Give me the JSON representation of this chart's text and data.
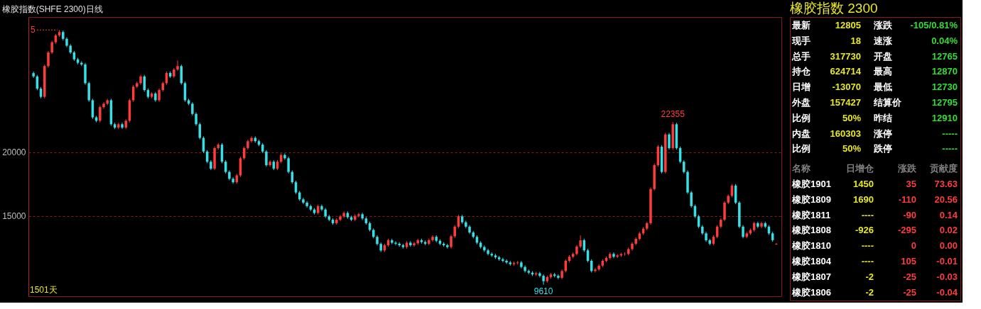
{
  "chart_data": [
    {
      "type": "candlestick",
      "title": "橡胶指数(SHFE 2300)日线",
      "ylim": [
        8700,
        30600
      ],
      "yticks": [
        15000,
        20000
      ],
      "grid": "y",
      "annotations": [
        "5",
        {
          "text": "22355",
          "y": 22355
        },
        {
          "text": "9610",
          "y": 9610
        },
        "1501天"
      ],
      "categories": [
        null,
        null,
        null,
        null,
        null,
        null,
        null,
        null,
        null,
        null,
        null,
        null,
        null,
        null,
        null,
        null,
        null,
        null,
        null,
        null,
        null,
        null,
        null,
        null,
        null,
        null,
        null,
        null,
        null,
        null,
        null,
        null,
        null,
        null,
        null,
        null,
        null,
        null,
        null,
        null,
        null,
        null,
        null,
        null,
        null,
        null,
        null,
        null,
        null,
        null,
        null,
        null,
        null,
        null,
        null,
        null,
        null,
        null,
        null,
        null,
        null,
        null,
        null,
        null,
        null,
        null,
        null,
        null,
        null,
        null,
        null,
        null,
        null,
        null,
        null,
        null,
        null,
        null,
        null,
        null,
        null,
        null,
        null,
        null,
        null,
        null,
        null,
        null,
        null,
        null,
        null,
        null,
        null,
        null,
        null,
        null,
        null,
        null,
        null,
        null,
        null,
        null,
        null,
        null,
        null,
        null,
        null,
        null,
        null,
        null,
        null,
        null,
        null,
        null,
        null,
        null,
        null,
        null,
        null,
        null,
        null,
        null,
        null,
        null,
        null,
        null,
        null,
        null,
        null,
        null,
        null,
        null,
        null,
        null,
        null,
        null,
        null,
        null,
        null,
        null,
        null,
        null,
        null,
        null,
        null,
        null,
        null,
        null,
        null,
        null,
        null,
        null,
        null,
        null,
        null,
        null,
        null,
        null,
        null,
        null,
        null,
        null,
        null,
        null,
        null,
        null,
        null,
        null,
        null,
        null,
        null,
        null,
        null,
        null,
        null,
        null,
        null,
        null,
        null,
        null,
        null,
        null,
        null,
        null,
        null,
        null,
        null,
        null,
        null,
        null,
        null,
        null,
        null,
        null,
        null,
        null,
        null,
        null,
        null,
        null,
        null,
        null
      ],
      "ohlc": [
        [
          26200,
          26320,
          25820,
          25940
        ],
        [
          25940,
          26060,
          24860,
          24980
        ],
        [
          24980,
          25100,
          24220,
          24340
        ],
        [
          24340,
          26870,
          24220,
          26750
        ],
        [
          26750,
          27940,
          26630,
          27820
        ],
        [
          27820,
          28740,
          27700,
          28620
        ],
        [
          28620,
          29280,
          28500,
          29160
        ],
        [
          29160,
          29585,
          29040,
          29420
        ],
        [
          29420,
          29540,
          28770,
          28890
        ],
        [
          28890,
          29010,
          28230,
          28350
        ],
        [
          28350,
          28470,
          27700,
          27820
        ],
        [
          27820,
          27940,
          27160,
          27280
        ],
        [
          27280,
          27400,
          26890,
          27010
        ],
        [
          27010,
          27130,
          26760,
          26880
        ],
        [
          26880,
          27000,
          25290,
          25410
        ],
        [
          25410,
          25530,
          23950,
          24070
        ],
        [
          24070,
          24190,
          22610,
          22730
        ],
        [
          22730,
          22850,
          22340,
          22460
        ],
        [
          22460,
          23650,
          22340,
          23530
        ],
        [
          23530,
          23920,
          23410,
          23800
        ],
        [
          23800,
          24190,
          23680,
          24070
        ],
        [
          24070,
          24190,
          22070,
          22190
        ],
        [
          22190,
          22310,
          21810,
          21930
        ],
        [
          21930,
          22310,
          21810,
          22190
        ],
        [
          22190,
          22310,
          21810,
          21930
        ],
        [
          21930,
          22580,
          21810,
          22460
        ],
        [
          22460,
          24190,
          22340,
          24070
        ],
        [
          24070,
          25260,
          23950,
          25140
        ],
        [
          25140,
          25530,
          25020,
          25410
        ],
        [
          25410,
          26060,
          25290,
          25940
        ],
        [
          25940,
          26060,
          24750,
          24870
        ],
        [
          24870,
          24990,
          24220,
          24340
        ],
        [
          24340,
          24720,
          24220,
          24600
        ],
        [
          24600,
          24720,
          23950,
          24070
        ],
        [
          24070,
          24990,
          23950,
          24870
        ],
        [
          24870,
          25530,
          24750,
          25410
        ],
        [
          25410,
          26330,
          25290,
          26210
        ],
        [
          26210,
          26330,
          25820,
          25940
        ],
        [
          25940,
          26600,
          25820,
          26480
        ],
        [
          26480,
          27175,
          26360,
          26750
        ],
        [
          26750,
          26870,
          25290,
          25410
        ],
        [
          25410,
          25530,
          23950,
          24070
        ],
        [
          24070,
          24190,
          23680,
          23800
        ],
        [
          23800,
          23920,
          22880,
          23000
        ],
        [
          23000,
          23120,
          22070,
          22190
        ],
        [
          22190,
          22310,
          21000,
          21120
        ],
        [
          21120,
          21240,
          19930,
          20050
        ],
        [
          20050,
          20170,
          19130,
          19250
        ],
        [
          19250,
          19370,
          18590,
          18710
        ],
        [
          18710,
          20440,
          18590,
          20320
        ],
        [
          20320,
          20710,
          20200,
          20590
        ],
        [
          20590,
          20710,
          19130,
          19250
        ],
        [
          19250,
          19370,
          18330,
          18450
        ],
        [
          18450,
          18570,
          17790,
          17910
        ],
        [
          17910,
          18030,
          17520,
          17640
        ],
        [
          17640,
          18300,
          17520,
          18180
        ],
        [
          18180,
          19640,
          18060,
          19520
        ],
        [
          19520,
          20440,
          19400,
          20320
        ],
        [
          20320,
          20980,
          20200,
          20860
        ],
        [
          20860,
          21240,
          20740,
          21120
        ],
        [
          21120,
          21240,
          20740,
          20860
        ],
        [
          20860,
          20980,
          20470,
          20590
        ],
        [
          20590,
          20710,
          19930,
          20050
        ],
        [
          20050,
          20170,
          18860,
          18980
        ],
        [
          18980,
          19370,
          18860,
          19250
        ],
        [
          19250,
          19370,
          18590,
          18710
        ],
        [
          18710,
          19370,
          18590,
          19250
        ],
        [
          19250,
          19900,
          19130,
          19780
        ],
        [
          19780,
          19900,
          19400,
          19520
        ],
        [
          19520,
          19640,
          18330,
          18450
        ],
        [
          18450,
          18570,
          17520,
          17640
        ],
        [
          17640,
          17760,
          16720,
          16840
        ],
        [
          16840,
          16960,
          16180,
          16300
        ],
        [
          16300,
          16420,
          15920,
          16040
        ],
        [
          16040,
          16160,
          15650,
          15770
        ],
        [
          15770,
          15890,
          15380,
          15500
        ],
        [
          15500,
          15620,
          15110,
          15230
        ],
        [
          15230,
          15890,
          15110,
          15770
        ],
        [
          15770,
          15890,
          15380,
          15500
        ],
        [
          15500,
          15620,
          14840,
          14960
        ],
        [
          14960,
          15080,
          14580,
          14700
        ],
        [
          14700,
          14820,
          14310,
          14430
        ],
        [
          14430,
          14820,
          14310,
          14700
        ],
        [
          14700,
          15080,
          14580,
          14960
        ],
        [
          14960,
          15350,
          14840,
          15230
        ],
        [
          15230,
          15350,
          14780,
          14900
        ],
        [
          14900,
          15020,
          14580,
          14700
        ],
        [
          14700,
          15120,
          14580,
          15000
        ],
        [
          15000,
          15250,
          14880,
          15130
        ],
        [
          15130,
          15250,
          14680,
          14800
        ],
        [
          14800,
          14920,
          14310,
          14430
        ],
        [
          14430,
          14550,
          13780,
          13900
        ],
        [
          13900,
          14020,
          13240,
          13360
        ],
        [
          13360,
          13480,
          12680,
          12800
        ],
        [
          12800,
          12920,
          12170,
          12290
        ],
        [
          12290,
          12820,
          12170,
          12700
        ],
        [
          12700,
          13210,
          12580,
          13090
        ],
        [
          13090,
          13210,
          12780,
          12900
        ],
        [
          12900,
          13020,
          12700,
          12820
        ],
        [
          12820,
          12940,
          12580,
          12700
        ],
        [
          12700,
          12820,
          12440,
          12560
        ],
        [
          12560,
          13020,
          12440,
          12900
        ],
        [
          12900,
          13020,
          12580,
          12700
        ],
        [
          12700,
          12970,
          12580,
          12850
        ],
        [
          12850,
          13210,
          12730,
          13090
        ],
        [
          13090,
          13210,
          12830,
          12950
        ],
        [
          12950,
          13070,
          12700,
          12820
        ],
        [
          12820,
          13220,
          12700,
          13100
        ],
        [
          13100,
          13480,
          12980,
          13360
        ],
        [
          13360,
          13480,
          12930,
          13050
        ],
        [
          13050,
          13170,
          12700,
          12820
        ],
        [
          12820,
          12940,
          12580,
          12700
        ],
        [
          12700,
          12820,
          12440,
          12560
        ],
        [
          12560,
          13520,
          12440,
          13400
        ],
        [
          13400,
          14280,
          13280,
          14160
        ],
        [
          14160,
          15080,
          14040,
          14960
        ],
        [
          14960,
          15080,
          14380,
          14500
        ],
        [
          14500,
          14620,
          14040,
          14160
        ],
        [
          14160,
          14280,
          13580,
          13700
        ],
        [
          13700,
          13820,
          13240,
          13360
        ],
        [
          13360,
          13480,
          12780,
          12900
        ],
        [
          12900,
          13020,
          12440,
          12560
        ],
        [
          12560,
          12680,
          12180,
          12300
        ],
        [
          12300,
          12420,
          11900,
          12020
        ],
        [
          12020,
          12140,
          11780,
          11900
        ],
        [
          11900,
          12020,
          11630,
          11750
        ],
        [
          11750,
          11870,
          11480,
          11600
        ],
        [
          11600,
          11720,
          11360,
          11480
        ],
        [
          11480,
          11600,
          11230,
          11350
        ],
        [
          11350,
          11470,
          11100,
          11220
        ],
        [
          11220,
          11420,
          11100,
          11300
        ],
        [
          11300,
          11470,
          11180,
          11350
        ],
        [
          11350,
          11470,
          10880,
          11000
        ],
        [
          11000,
          11120,
          10560,
          10680
        ],
        [
          10680,
          10800,
          10430,
          10550
        ],
        [
          10550,
          10670,
          10290,
          10410
        ],
        [
          10410,
          10620,
          10290,
          10500
        ],
        [
          10500,
          10620,
          10180,
          10300
        ],
        [
          10300,
          10420,
          9610,
          9880
        ],
        [
          9880,
          10320,
          9760,
          10200
        ],
        [
          10200,
          10530,
          10080,
          10410
        ],
        [
          10410,
          10530,
          10180,
          10300
        ],
        [
          10300,
          10420,
          10030,
          10150
        ],
        [
          10150,
          10800,
          10030,
          10680
        ],
        [
          10680,
          11600,
          10560,
          11480
        ],
        [
          11480,
          11920,
          11360,
          11800
        ],
        [
          11800,
          12140,
          11680,
          12020
        ],
        [
          12020,
          12720,
          11900,
          12600
        ],
        [
          12600,
          13470,
          12480,
          13090
        ],
        [
          13090,
          13210,
          12180,
          12300
        ],
        [
          12300,
          12420,
          11360,
          11480
        ],
        [
          11480,
          11600,
          10560,
          10680
        ],
        [
          10680,
          10920,
          10560,
          10800
        ],
        [
          10800,
          11220,
          10680,
          11100
        ],
        [
          11100,
          11600,
          10980,
          11480
        ],
        [
          11480,
          11820,
          11360,
          11700
        ],
        [
          11700,
          12140,
          11580,
          12020
        ],
        [
          12020,
          12140,
          11680,
          11800
        ],
        [
          11800,
          12020,
          11680,
          11900
        ],
        [
          11900,
          12120,
          11780,
          12000
        ],
        [
          12000,
          12140,
          11880,
          12020
        ],
        [
          12020,
          12520,
          11900,
          12400
        ],
        [
          12400,
          12940,
          12280,
          12820
        ],
        [
          12820,
          13320,
          12700,
          13200
        ],
        [
          13200,
          13750,
          13080,
          13630
        ],
        [
          13630,
          14120,
          13510,
          14000
        ],
        [
          14000,
          14550,
          13880,
          14430
        ],
        [
          14430,
          17230,
          14310,
          17110
        ],
        [
          17110,
          19100,
          16990,
          18980
        ],
        [
          18980,
          20550,
          18860,
          20430
        ],
        [
          20430,
          20550,
          18330,
          18450
        ],
        [
          18450,
          21510,
          18330,
          21390
        ],
        [
          21390,
          21510,
          20200,
          20320
        ],
        [
          20320,
          22355,
          20200,
          22190
        ],
        [
          22190,
          22310,
          20200,
          20320
        ],
        [
          20320,
          20440,
          19130,
          19250
        ],
        [
          19250,
          19370,
          18330,
          18450
        ],
        [
          18450,
          18570,
          16720,
          16840
        ],
        [
          16840,
          16960,
          15650,
          15770
        ],
        [
          15770,
          15890,
          14840,
          14960
        ],
        [
          14960,
          15080,
          14040,
          14160
        ],
        [
          14160,
          14280,
          13510,
          13630
        ],
        [
          13630,
          13750,
          12970,
          13090
        ],
        [
          13090,
          13210,
          12700,
          12820
        ],
        [
          12820,
          13480,
          12700,
          13360
        ],
        [
          13360,
          14280,
          13240,
          14160
        ],
        [
          14160,
          14820,
          14040,
          14700
        ],
        [
          14700,
          16160,
          14580,
          16040
        ],
        [
          16040,
          16690,
          15920,
          16570
        ],
        [
          16570,
          17500,
          16450,
          17380
        ],
        [
          17380,
          17500,
          15920,
          16040
        ],
        [
          16040,
          16160,
          14040,
          14160
        ],
        [
          14160,
          14280,
          13240,
          13360
        ],
        [
          13360,
          13750,
          13240,
          13630
        ],
        [
          13630,
          14010,
          13510,
          13890
        ],
        [
          13890,
          14550,
          13770,
          14430
        ],
        [
          14430,
          14550,
          14040,
          14160
        ],
        [
          14160,
          14550,
          14040,
          14430
        ],
        [
          14430,
          14550,
          14040,
          14160
        ],
        [
          14160,
          14280,
          13510,
          13630
        ],
        [
          13630,
          13750,
          12980,
          13100
        ],
        [
          12765,
          12870,
          12730,
          12805
        ]
      ]
    },
    {
      "type": "other",
      "title": "橡胶指数 2300",
      "annotations": [
        "最新",
        "12805",
        "涨跌",
        "-105/0.81%",
        "现手",
        "18",
        "速涨",
        "0.04%",
        "总手",
        "317730",
        "开盘",
        "12765",
        "持仓",
        "624714",
        "最高",
        "12870",
        "日增",
        "-13070",
        "最低",
        "12730",
        "外盘",
        "157427",
        "结算价",
        "12795",
        "比例",
        "50%",
        "昨结",
        "12910",
        "内盘",
        "160303",
        "涨停",
        "-----",
        "比例",
        "50%",
        "跌停",
        "-----",
        "名称",
        "日增仓",
        "涨跌",
        "贡献度",
        "橡胶1901",
        "1450",
        "35",
        "73.63",
        "橡胶1809",
        "1690",
        "-110",
        "20.56",
        "橡胶1811",
        "----",
        "-90",
        "0.14",
        "橡胶1808",
        "-926",
        "-295",
        "0.02",
        "橡胶1810",
        "----",
        "0",
        "0.00",
        "橡胶1804",
        "----",
        "105",
        "-0.01",
        "橡胶1807",
        "-2",
        "-25",
        "-0.03",
        "橡胶1806",
        "-2",
        "-25",
        "-0.04"
      ]
    }
  ]
}
